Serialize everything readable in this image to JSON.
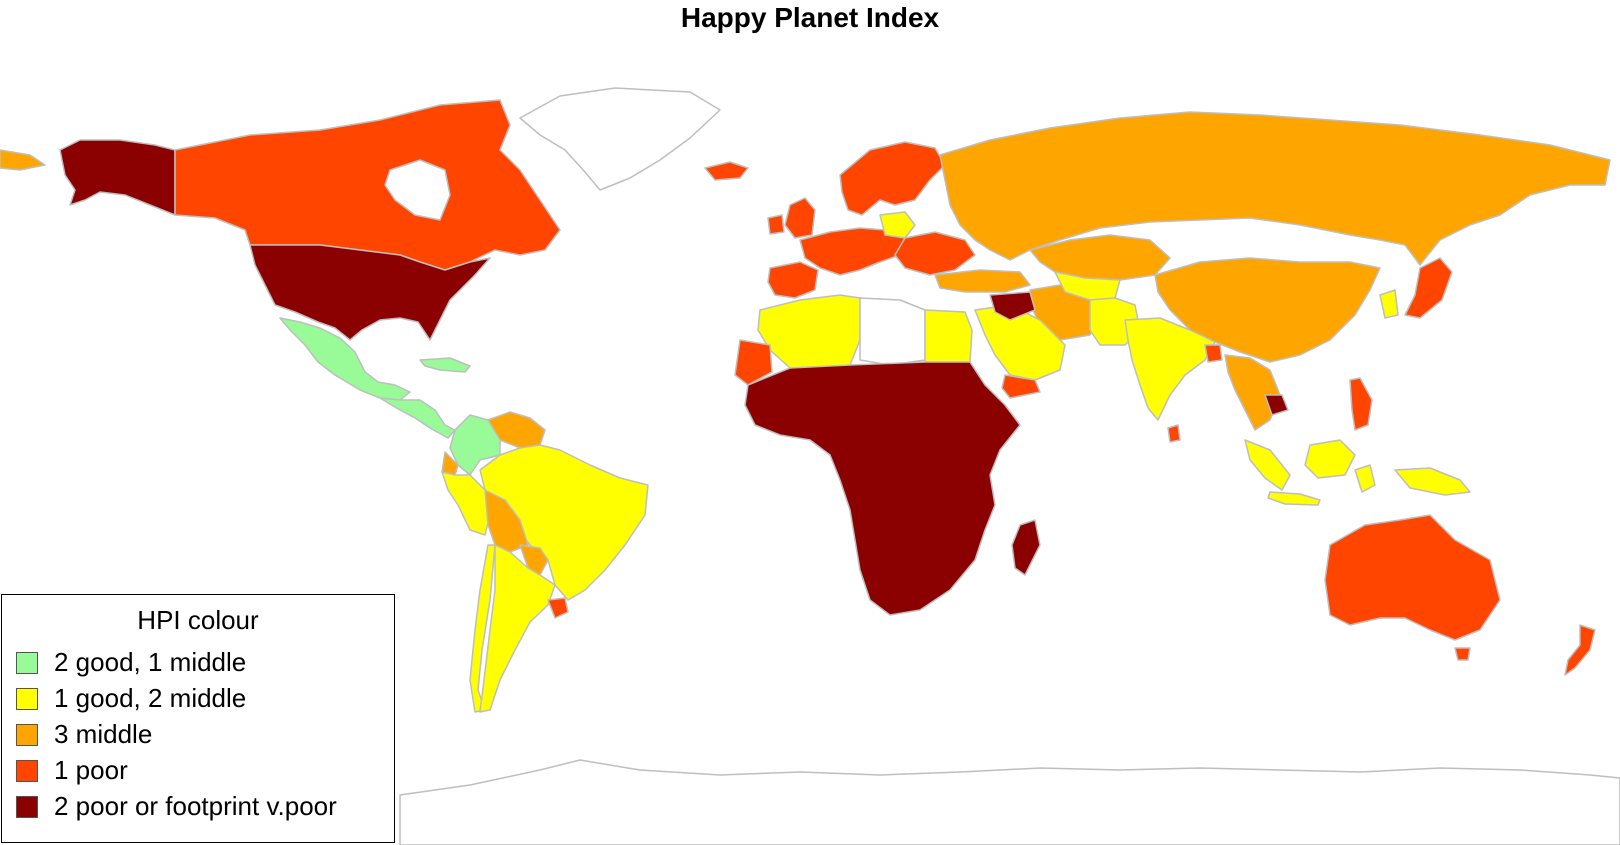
{
  "title": "Happy Planet Index",
  "legend": {
    "title": "HPI colour",
    "items": [
      {
        "label": "2 good, 1 middle",
        "color": "#98fb98"
      },
      {
        "label": "1 good, 2 middle",
        "color": "#ffff00"
      },
      {
        "label": "3 middle",
        "color": "#ffa500"
      },
      {
        "label": "1 poor",
        "color": "#ff4500"
      },
      {
        "label": "2 poor or footprint v.poor",
        "color": "#8b0000"
      }
    ]
  },
  "colors": {
    "border": "#bebebe",
    "no_data": "#ffffff"
  }
}
